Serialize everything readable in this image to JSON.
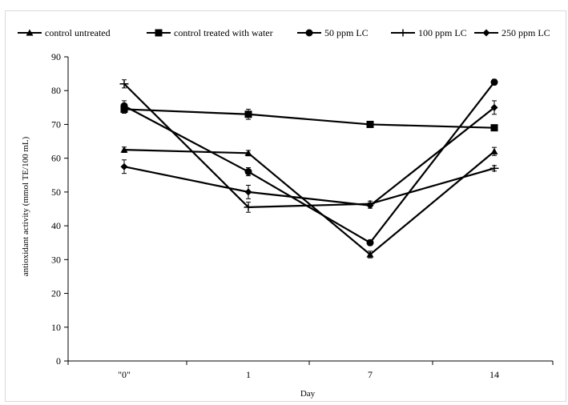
{
  "chart_data": {
    "type": "line",
    "xlabel": "Day",
    "ylabel": "antioxidant activity (mmol TE/100 mL)",
    "categories": [
      "\"0\"",
      "1",
      "7",
      "14"
    ],
    "ylim": [
      0,
      90
    ],
    "yticks": [
      0,
      10,
      20,
      30,
      40,
      50,
      60,
      70,
      80,
      90
    ],
    "grid": false,
    "legend_position": "top",
    "series": [
      {
        "name": "control untreated",
        "marker": "triangle",
        "values": [
          62.5,
          61.5,
          31.5,
          62
        ],
        "errors": [
          0.8,
          0.8,
          1.0,
          1.2
        ]
      },
      {
        "name": "control treated with water",
        "marker": "square",
        "values": [
          74.5,
          73,
          70,
          69
        ],
        "errors": [
          1.2,
          1.5,
          0.8,
          0.8
        ]
      },
      {
        "name": "50 ppm LC",
        "marker": "circle",
        "values": [
          75.5,
          56,
          35,
          82.5
        ],
        "errors": [
          1.5,
          1.2,
          0.8,
          0.8
        ]
      },
      {
        "name": "100 ppm LC",
        "marker": "cross",
        "values": [
          82,
          45.5,
          46.5,
          57
        ],
        "errors": [
          1.2,
          1.5,
          0.8,
          0.8
        ]
      },
      {
        "name": "250 ppm LC",
        "marker": "diamond",
        "values": [
          57.5,
          50,
          46,
          75
        ],
        "errors": [
          2.0,
          2.0,
          0.8,
          2.0
        ]
      }
    ]
  }
}
